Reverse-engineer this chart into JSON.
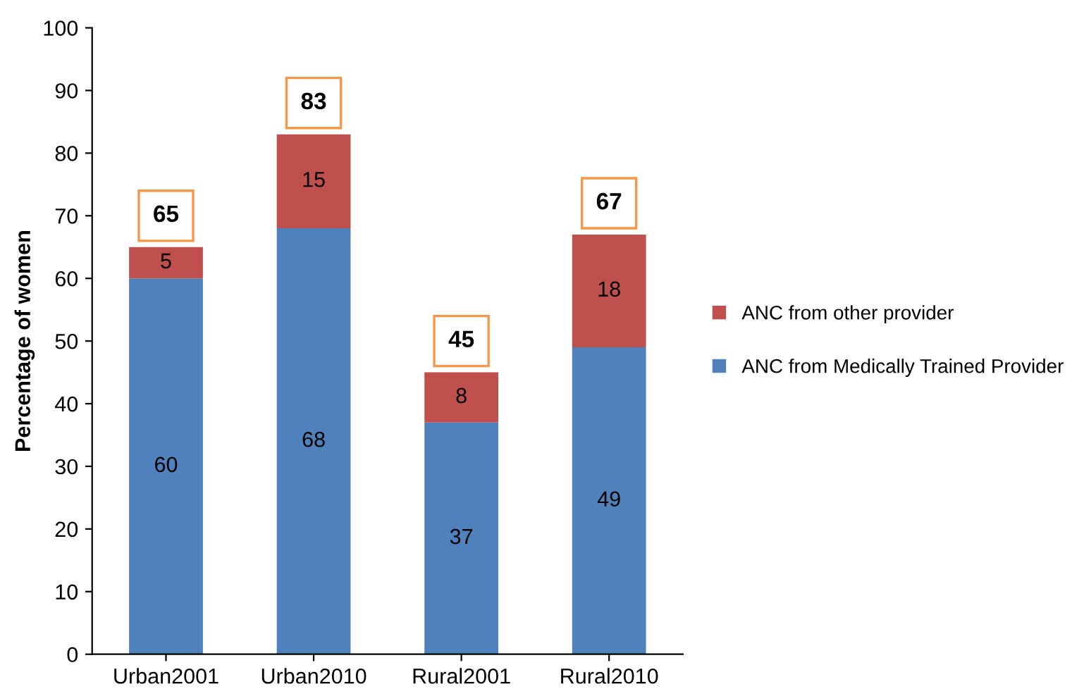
{
  "chart_data": {
    "type": "bar",
    "stacked": true,
    "ylabel": "Percentage of women",
    "categories": [
      "Urban2001",
      "Urban2010",
      "Rural2001",
      "Rural2010"
    ],
    "series": [
      {
        "name": "ANC from Medically Trained Provider",
        "color": "#4f81bd",
        "values": [
          60,
          68,
          37,
          49
        ]
      },
      {
        "name": "ANC from other provider",
        "color": "#c0504d",
        "values": [
          5,
          15,
          8,
          18
        ]
      }
    ],
    "totals": [
      "65",
      "83",
      "45",
      "67"
    ],
    "data_labels": true,
    "ylim": [
      0,
      100
    ],
    "yticks": [
      0,
      10,
      20,
      30,
      40,
      50,
      60,
      70,
      80,
      90,
      100
    ],
    "grid": false,
    "legend": "right"
  }
}
